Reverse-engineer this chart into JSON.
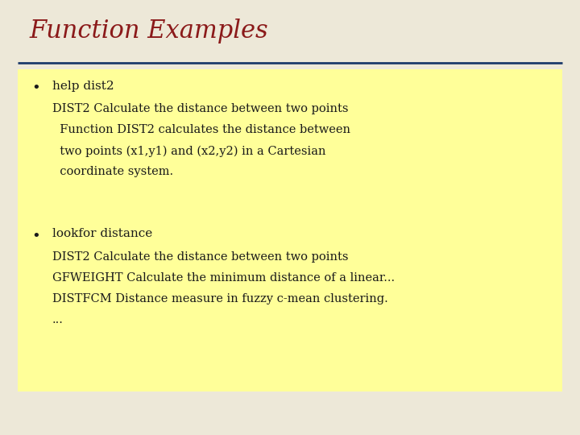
{
  "title": "Function Examples",
  "title_color": "#8B1A1A",
  "title_fontsize": 22,
  "background_color": "#EDE8D8",
  "yellow_box_color": "#FFFF99",
  "separator_color": "#1C3A6B",
  "text_color": "#1a1a1a",
  "bullet_fontsize": 11,
  "content_fontsize": 10.5,
  "bullet1_header": "help dist2",
  "bullet1_lines": [
    "DIST2 Calculate the distance between two points",
    "  Function DIST2 calculates the distance between",
    "  two points (x1,y1) and (x2,y2) in a Cartesian",
    "  coordinate system."
  ],
  "bullet2_header": "lookfor distance",
  "bullet2_lines": [
    "DIST2 Calculate the distance between two points",
    "GFWEIGHT Calculate the minimum distance of a linear...",
    "DISTFCM Distance measure in fuzzy c-mean clustering.",
    "..."
  ]
}
